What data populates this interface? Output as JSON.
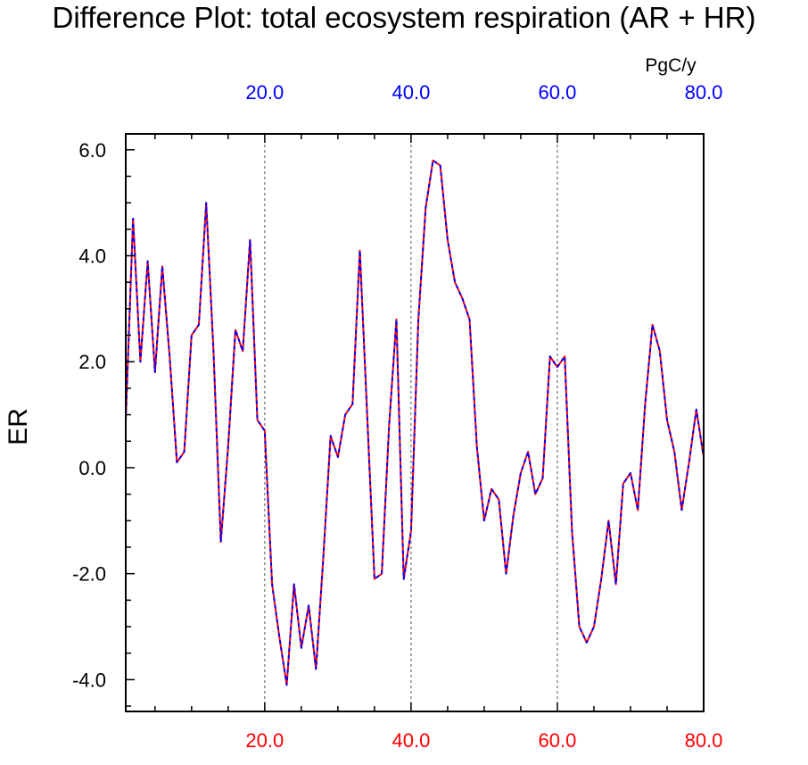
{
  "title": "Difference Plot: total ecosystem respiration (AR + HR)",
  "chart_data": {
    "type": "line",
    "title": "Difference Plot: total ecosystem respiration (AR + HR)",
    "ylabel": "ER",
    "top_axis_unit": "PgC/y",
    "xlim": [
      1,
      80
    ],
    "ylim": [
      -4.6,
      6.3
    ],
    "x_ticks": [
      20,
      40,
      60,
      80
    ],
    "x_tick_labels": [
      "20.0",
      "40.0",
      "60.0",
      "80.0"
    ],
    "y_ticks": [
      -4,
      -2,
      0,
      2,
      4,
      6
    ],
    "y_tick_labels": [
      "-4.0",
      "-2.0",
      "0.0",
      "2.0",
      "4.0",
      "6.0"
    ],
    "grid": "dashed vertical lines at 20, 40, 60",
    "colors": {
      "bottom_axis_labels": "#ff0000",
      "top_axis_labels": "#0000ff",
      "series_a": "#ff0000",
      "series_b": "#0000ff"
    },
    "x": [
      1,
      2,
      3,
      4,
      5,
      6,
      7,
      8,
      9,
      10,
      11,
      12,
      13,
      14,
      15,
      16,
      17,
      18,
      19,
      20,
      21,
      22,
      23,
      24,
      25,
      26,
      27,
      28,
      29,
      30,
      31,
      32,
      33,
      34,
      35,
      36,
      37,
      38,
      39,
      40,
      41,
      42,
      43,
      44,
      45,
      46,
      47,
      48,
      49,
      50,
      51,
      52,
      53,
      54,
      55,
      56,
      57,
      58,
      59,
      60,
      61,
      62,
      63,
      64,
      65,
      66,
      67,
      68,
      69,
      70,
      71,
      72,
      73,
      74,
      75,
      76,
      77,
      78,
      79,
      80
    ],
    "series": [
      {
        "color": "#ff0000",
        "style": "solid",
        "values": [
          0.9,
          4.7,
          2.0,
          3.9,
          1.8,
          3.8,
          2.1,
          0.1,
          0.3,
          2.5,
          2.7,
          5.0,
          2.2,
          -1.4,
          0.4,
          2.6,
          2.2,
          4.3,
          0.9,
          0.7,
          -2.2,
          -3.2,
          -4.1,
          -2.2,
          -3.4,
          -2.6,
          -3.8,
          -1.7,
          0.6,
          0.2,
          1.0,
          1.2,
          4.1,
          1.0,
          -2.1,
          -2.0,
          0.8,
          2.8,
          -2.1,
          -1.2,
          2.8,
          4.9,
          5.8,
          5.7,
          4.3,
          3.5,
          3.2,
          2.8,
          0.4,
          -1.0,
          -0.4,
          -0.6,
          -2.0,
          -0.9,
          -0.1,
          0.3,
          -0.5,
          -0.2,
          2.1,
          1.9,
          2.1,
          -1.2,
          -3.0,
          -3.3,
          -3.0,
          -2.1,
          -1.0,
          -2.2,
          -0.3,
          -0.1,
          -0.8,
          1.2,
          2.7,
          2.2,
          0.9,
          0.3,
          -0.8,
          0.1,
          1.1,
          0.2
        ]
      },
      {
        "color": "#0000ff",
        "style": "dashed",
        "values": [
          0.9,
          4.7,
          2.0,
          3.9,
          1.8,
          3.8,
          2.1,
          0.1,
          0.3,
          2.5,
          2.7,
          5.0,
          2.2,
          -1.4,
          0.4,
          2.6,
          2.2,
          4.3,
          0.9,
          0.7,
          -2.2,
          -3.2,
          -4.1,
          -2.2,
          -3.4,
          -2.6,
          -3.8,
          -1.7,
          0.6,
          0.2,
          1.0,
          1.2,
          4.1,
          1.0,
          -2.1,
          -2.0,
          0.8,
          2.8,
          -2.1,
          -1.2,
          2.8,
          4.9,
          5.8,
          5.7,
          4.3,
          3.5,
          3.2,
          2.8,
          0.4,
          -1.0,
          -0.4,
          -0.6,
          -2.0,
          -0.9,
          -0.1,
          0.3,
          -0.5,
          -0.2,
          2.1,
          1.9,
          2.1,
          -1.2,
          -3.0,
          -3.3,
          -3.0,
          -2.1,
          -1.0,
          -2.2,
          -0.3,
          -0.1,
          -0.8,
          1.2,
          2.7,
          2.2,
          0.9,
          0.3,
          -0.8,
          0.1,
          1.1,
          0.2
        ]
      }
    ]
  }
}
